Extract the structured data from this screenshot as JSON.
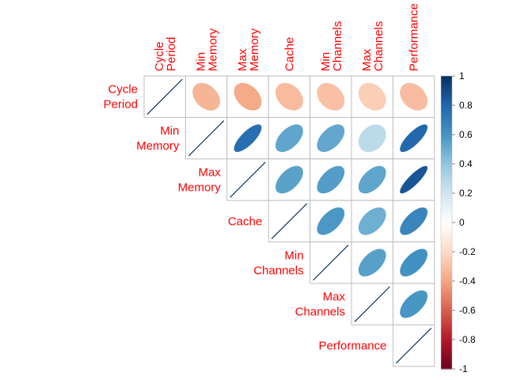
{
  "chart_data": {
    "type": "heatmap",
    "subtype": "correlation-matrix-upper-ellipse",
    "variables": [
      [
        "Cycle",
        "Period"
      ],
      [
        "Min",
        "Memory"
      ],
      [
        "Max",
        "Memory"
      ],
      [
        "Cache"
      ],
      [
        "Min",
        "Channels"
      ],
      [
        "Max",
        "Channels"
      ],
      [
        "Performance"
      ]
    ],
    "matrix": [
      [
        1.0,
        -0.34,
        -0.38,
        -0.32,
        -0.3,
        -0.25,
        -0.31
      ],
      [
        -0.34,
        1.0,
        0.76,
        0.53,
        0.52,
        0.27,
        0.79
      ],
      [
        -0.38,
        0.76,
        1.0,
        0.54,
        0.56,
        0.53,
        0.86
      ],
      [
        -0.32,
        0.53,
        0.54,
        1.0,
        0.58,
        0.49,
        0.66
      ],
      [
        -0.3,
        0.52,
        0.56,
        0.58,
        1.0,
        0.55,
        0.61
      ],
      [
        -0.25,
        0.27,
        0.53,
        0.49,
        0.55,
        1.0,
        0.59
      ],
      [
        -0.31,
        0.79,
        0.86,
        0.66,
        0.61,
        0.59,
        1.0
      ]
    ],
    "colorbar": {
      "ticks": [
        "1",
        "0.8",
        "0.6",
        "0.4",
        "0.2",
        "0",
        "-0.2",
        "-0.4",
        "-0.6",
        "-0.8",
        "-1"
      ],
      "range": [
        -1,
        1
      ]
    },
    "colors": {
      "label": "#ff0000",
      "negative_strong": "#67001f",
      "neutral": "#f7f7f7",
      "positive_strong": "#053061",
      "grid": "#bebebe",
      "diagonal_line": "#053061"
    },
    "grid": true
  }
}
